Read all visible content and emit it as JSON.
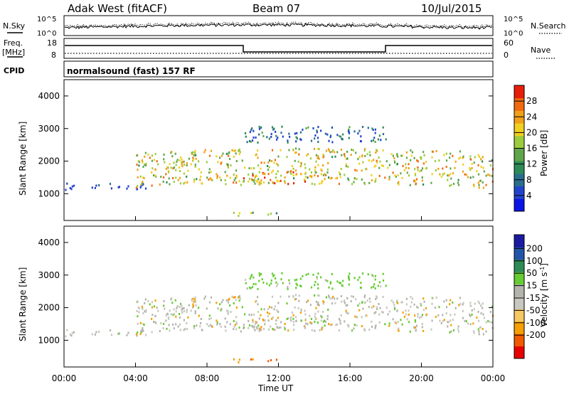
{
  "header": {
    "station": "Adak West (fitACF)",
    "beam": "Beam 07",
    "date": "10/Jul/2015"
  },
  "noise_panel": {
    "left_label": "N.Sky",
    "right_label": "N.Search",
    "left_ticks": [
      "10^5",
      "10^0"
    ],
    "right_ticks": [
      "10^5",
      "10^0"
    ]
  },
  "freq_panel": {
    "left_label_1": "Freq.",
    "left_label_2": "[MHz]",
    "right_label": "Nave",
    "left_ticks": [
      "18",
      "8"
    ],
    "right_ticks": [
      "60",
      "0"
    ]
  },
  "cpid_panel": {
    "label": "CPID",
    "mode_text": "normalsound (fast) 157 RF"
  },
  "colors": {
    "power_scale": [
      "#0a14e6",
      "#2244cc",
      "#2a6e8c",
      "#2e8b57",
      "#5fa64a",
      "#9ccc3c",
      "#f0d020",
      "#f2a018",
      "#f06a10",
      "#e61e0a"
    ],
    "velocity_scale": [
      "#e60000",
      "#f05a00",
      "#f5a000",
      "#f5c864",
      "#c8c8c0",
      "#b4b4ae",
      "#66cc33",
      "#2e8b57",
      "#2255aa",
      "#1a1aa0"
    ]
  },
  "chart_data": [
    {
      "type": "heatmap",
      "title": "Power",
      "xlabel": "",
      "ylabel": "Slant Range [km]",
      "xlim": [
        "00:00",
        "00:00"
      ],
      "ylim": [
        180,
        4500
      ],
      "yticks": [
        1000,
        2000,
        3000,
        4000
      ],
      "colorbar": {
        "label": "Power [dB]",
        "ticks": [
          "4",
          "8",
          "12",
          "16",
          "20",
          "24",
          "28"
        ]
      },
      "features": [
        {
          "desc": "low band",
          "x_hours": [
            0,
            4.8
          ],
          "range_km": [
            1150,
            1350
          ],
          "power_db": 6
        },
        {
          "desc": "main echo band",
          "x_hours": [
            4,
            24
          ],
          "range_km": [
            1200,
            2300
          ],
          "power_db": 24
        },
        {
          "desc": "strong patch",
          "x_hours": [
            10,
            14
          ],
          "range_km": [
            1300,
            1700
          ],
          "power_db": 28
        },
        {
          "desc": "upper echo",
          "x_hours": [
            10,
            18
          ],
          "range_km": [
            2600,
            3100
          ],
          "power_db": 12
        },
        {
          "desc": "near-range",
          "x_hours": [
            9,
            12
          ],
          "range_km": [
            350,
            450
          ],
          "power_db": 18
        }
      ]
    },
    {
      "type": "heatmap",
      "title": "Velocity",
      "xlabel": "Time UT",
      "ylabel": "Slant Range [km]",
      "xticks": [
        "00:00",
        "04:00",
        "08:00",
        "12:00",
        "16:00",
        "20:00",
        "00:00"
      ],
      "ylim": [
        180,
        4500
      ],
      "yticks": [
        1000,
        2000,
        3000,
        4000
      ],
      "colorbar": {
        "label": "Velocity [m s^-1]",
        "ticks": [
          "200",
          "100",
          "50",
          "15",
          "-15",
          "-50",
          "-100",
          "-200"
        ]
      },
      "features": [
        {
          "desc": "ground scatter",
          "x_hours": [
            0,
            24
          ],
          "range_km": [
            1000,
            2300
          ],
          "velocity": 0
        },
        {
          "desc": "upper echo",
          "x_hours": [
            10,
            18
          ],
          "range_km": [
            2600,
            3100
          ],
          "velocity": 30
        },
        {
          "desc": "near-range",
          "x_hours": [
            10,
            14
          ],
          "range_km": [
            300,
            450
          ],
          "velocity": -50
        }
      ]
    }
  ]
}
